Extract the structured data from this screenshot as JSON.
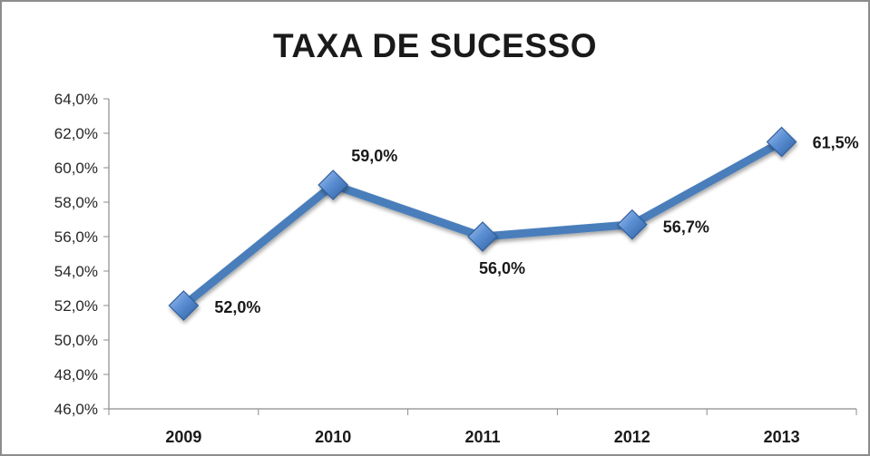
{
  "chart_data": {
    "type": "line",
    "title": "TAXA DE SUCESSO",
    "categories": [
      "2009",
      "2010",
      "2011",
      "2012",
      "2013"
    ],
    "series": [
      {
        "values": [
          52.0,
          59.0,
          56.0,
          56.7,
          61.5
        ],
        "data_labels": [
          "52,0%",
          "59,0%",
          "56,0%",
          "56,7%",
          "61,5%"
        ],
        "color": "#4a7ebb",
        "marker": "diamond"
      }
    ],
    "ylim": [
      46,
      64
    ],
    "y_ticks": [
      46,
      48,
      50,
      52,
      54,
      56,
      58,
      60,
      62,
      64
    ],
    "y_tick_labels": [
      "46,0%",
      "48,0%",
      "50,0%",
      "52,0%",
      "54,0%",
      "56,0%",
      "58,0%",
      "60,0%",
      "62,0%",
      "64,0%"
    ],
    "xlabel": "",
    "ylabel": "",
    "grid": false,
    "legend": "none"
  }
}
